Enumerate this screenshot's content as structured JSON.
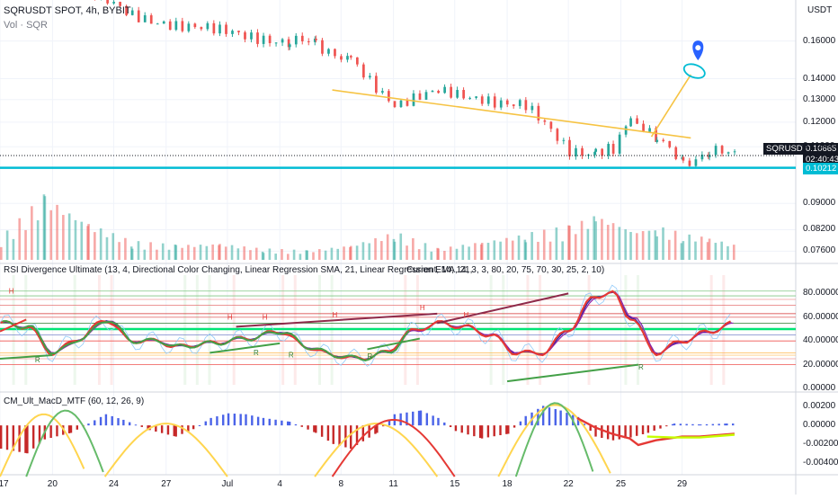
{
  "header": {
    "symbol_line": "SQRUSDT SPOT, 4h, BYBIT",
    "volume_line": "Vol · SQR",
    "currency_button": "USDT"
  },
  "panes": {
    "rsi_title": "RSI Divergence Ultimate (13, 4, Directional Color Changing, Linear Regression SMA, 21, Linear Regression EMA, 21,",
    "rsi_params": "Current, 14, 14, 3, 3, 80, 20, 75, 70, 30, 25, 2, 10)",
    "macd_title": "CM_Ult_MacD_MTF (60, 12, 26, 9)"
  },
  "price_tags": {
    "symbol": "SQRUSDT",
    "last": "0.10665",
    "countdown": "02:40:43",
    "support": "0.10212"
  },
  "chart_data": {
    "type": "line",
    "symbol": "SQRUSDT",
    "timeframe": "4h",
    "exchange": "BYBIT",
    "x_ticks": [
      "17",
      "20",
      "24",
      "27",
      "Jul",
      "4",
      "8",
      "11",
      "15",
      "18",
      "22",
      "25",
      "29"
    ],
    "price_axis": {
      "ticks": [
        "0.16000",
        "0.14000",
        "0.13000",
        "0.12000",
        "0.11000",
        "0.09000",
        "0.08200",
        "0.07600"
      ],
      "ticks_values": [
        0.16,
        0.14,
        0.13,
        0.12,
        0.11,
        0.09,
        0.082,
        0.076
      ],
      "scale": "log",
      "ylim": [
        0.073,
        0.185
      ]
    },
    "rsi_axis": {
      "ticks": [
        "80.00000",
        "60.00000",
        "40.00000",
        "20.00000",
        "0.00000"
      ],
      "ticks_values": [
        80,
        60,
        40,
        20,
        0
      ],
      "ylim": [
        0,
        100
      ]
    },
    "macd_axis": {
      "ticks": [
        "0.00200",
        "0.00000",
        "-0.00200",
        "-0.00400"
      ],
      "ticks_values": [
        0.002,
        0,
        -0.002,
        -0.004
      ],
      "ylim": [
        -0.0052,
        0.0032
      ]
    },
    "price_series": {
      "name": "SQRUSDT",
      "x": [
        0,
        5,
        10,
        15,
        20,
        25,
        30,
        33,
        36,
        40,
        45,
        50,
        55,
        60,
        65,
        68,
        70,
        72,
        75,
        78,
        81,
        84
      ],
      "close": [
        0.205,
        0.2,
        0.19,
        0.175,
        0.17,
        0.165,
        0.162,
        0.16,
        0.158,
        0.15,
        0.128,
        0.133,
        0.131,
        0.127,
        0.108,
        0.108,
        0.11,
        0.122,
        0.113,
        0.104,
        0.108,
        0.1066
      ]
    },
    "levels": {
      "last_price": 0.10665,
      "support": 0.10212
    },
    "trendline": {
      "x": [
        38,
        79
      ],
      "y": [
        0.1345,
        0.1135
      ]
    },
    "projection": {
      "x": [
        74.5,
        79
      ],
      "y": [
        0.114,
        0.142
      ]
    },
    "volume": {
      "x": [
        0,
        5,
        10,
        15,
        20,
        25,
        30,
        35,
        40,
        45,
        50,
        55,
        60,
        65,
        68,
        70,
        72,
        75,
        78,
        81,
        84
      ],
      "values": [
        12,
        35,
        20,
        10,
        8,
        9,
        6,
        5,
        8,
        15,
        6,
        10,
        14,
        18,
        24,
        22,
        16,
        18,
        14,
        12,
        8
      ]
    },
    "rsi": {
      "x": [
        0,
        3,
        6,
        9,
        12,
        15,
        18,
        20,
        24,
        28,
        32,
        35,
        38,
        41,
        44,
        47,
        50,
        53,
        56,
        59,
        62,
        65,
        68,
        70,
        72,
        75,
        78,
        81,
        84
      ],
      "values": [
        55,
        52,
        30,
        42,
        58,
        40,
        40,
        35,
        38,
        42,
        48,
        35,
        28,
        25,
        30,
        48,
        55,
        52,
        45,
        30,
        30,
        50,
        78,
        80,
        60,
        30,
        40,
        48,
        55
      ]
    },
    "macd": {
      "x": [
        0,
        3,
        5,
        8,
        10,
        12,
        14,
        17,
        20,
        22,
        24,
        26,
        28,
        30,
        33,
        36,
        38,
        40,
        43,
        45,
        48,
        50,
        52,
        55,
        58,
        60,
        62,
        64,
        66,
        68,
        70,
        72,
        74,
        77,
        80,
        83,
        84
      ],
      "values": [
        -0.0025,
        -0.003,
        -0.0015,
        -0.0008,
        0.0002,
        0.0012,
        0.0006,
        -0.0005,
        -0.0012,
        -0.0004,
        0.0008,
        0.0013,
        0.0012,
        0.0008,
        0.0004,
        -0.0008,
        -0.002,
        -0.0025,
        -0.0008,
        0.0012,
        0.0016,
        0.0008,
        -0.0006,
        -0.0014,
        -0.0009,
        0.001,
        0.0021,
        0.0016,
        0.0009,
        -0.0012,
        -0.0016,
        -0.0013,
        -0.0008,
        0.0002,
        0.0001,
        0.0002,
        0.0002
      ]
    },
    "colors": {
      "up": "#26a69a",
      "down": "#ef5350",
      "trendline": "#f6c343",
      "support": "#00bcd4",
      "rsi_fast": "#e53935",
      "rsi_slow": "#1e1ea8",
      "macd_up": "#4a63e8",
      "macd_down": "#c62828"
    }
  }
}
